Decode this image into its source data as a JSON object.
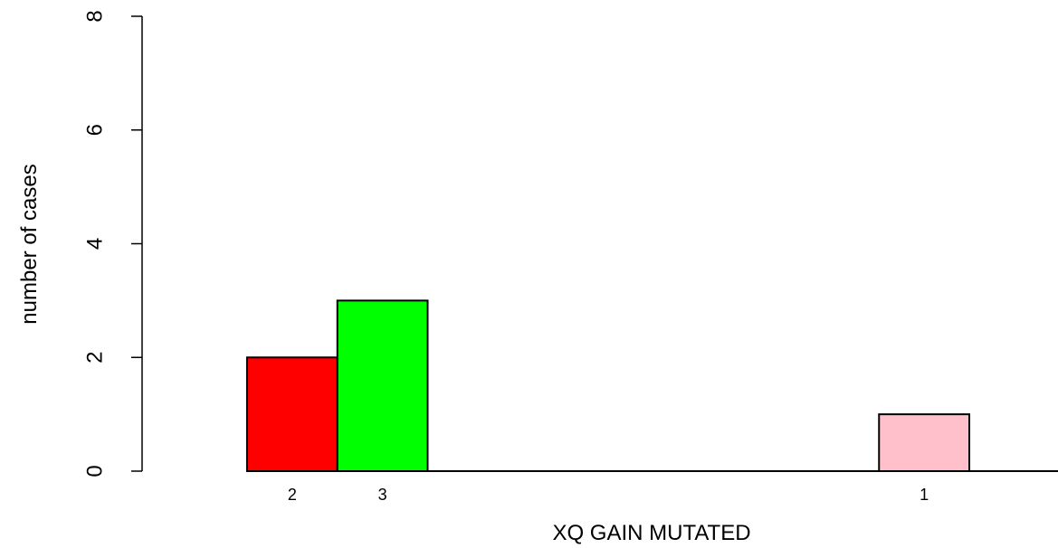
{
  "chart_data": {
    "type": "bar",
    "title": "",
    "xlabel": "XQ GAIN MUTATED",
    "ylabel": "number of cases",
    "ylim": [
      0,
      8
    ],
    "yticks": [
      "0",
      "2",
      "4",
      "6",
      "8"
    ],
    "grid": false,
    "legend": "none",
    "bars": [
      {
        "label": "2",
        "value": 2,
        "color": "#ff0000"
      },
      {
        "label": "3",
        "value": 3,
        "color": "#00ff00"
      },
      {
        "label": "",
        "value": 0,
        "color": "#ffffff"
      },
      {
        "label": "",
        "value": 0,
        "color": "#ffffff"
      },
      {
        "label": "",
        "value": 0,
        "color": "#ffffff"
      },
      {
        "label": "",
        "value": 0,
        "color": "#ffffff"
      },
      {
        "label": "",
        "value": 0,
        "color": "#ffffff"
      },
      {
        "label": "1",
        "value": 1,
        "color": "#ffc0cb"
      },
      {
        "label": "",
        "value": 0,
        "color": "#ffffff"
      }
    ]
  }
}
